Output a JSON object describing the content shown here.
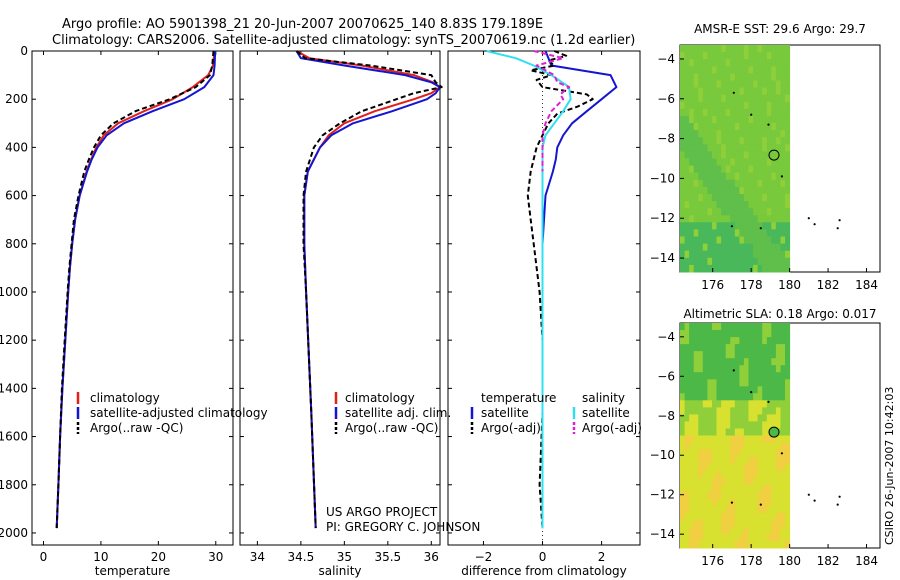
{
  "header": {
    "line1": "Argo profile: AO 5901398_21 20-Jun-2007 20070625_140 8.83S 179.189E",
    "line2": "Climatology: CARS2006. Satellite-adjusted climatology: synTS_20070619.nc (1.2d earlier)"
  },
  "credit": {
    "line1": "US ARGO PROJECT",
    "line2": "PI: GREGORY C. JOHNSON"
  },
  "stamp": "CSIRO 26-Jun-2007 10:42:03",
  "colors": {
    "red": "#e0201b",
    "blue": "#1515d0",
    "black": "#000000",
    "cyan": "#30e0f0",
    "magenta": "#e020d0"
  },
  "chart_data": [
    {
      "type": "line",
      "panel": "temperature",
      "xlabel": "temperature",
      "ylabel": "",
      "xlim": [
        -2,
        33
      ],
      "ylim": [
        2050,
        0
      ],
      "xticks": [
        0,
        10,
        20,
        30
      ],
      "yticks": [
        0,
        200,
        400,
        600,
        800,
        1000,
        1200,
        1400,
        1600,
        1800,
        2000
      ],
      "legend": [
        "climatology",
        "satellite-adjusted climatology",
        "Argo(..raw -QC)"
      ],
      "series": [
        {
          "name": "climatology",
          "color": "red",
          "dash": "",
          "depth": [
            0,
            60,
            100,
            150,
            200,
            250,
            300,
            350,
            400,
            450,
            500,
            600,
            700,
            800,
            900,
            1000,
            1200,
            1400,
            1600,
            1800,
            1980
          ],
          "x": [
            29.8,
            29.5,
            28.7,
            26.0,
            22.5,
            17.5,
            13.0,
            10.5,
            9.2,
            8.3,
            7.5,
            6.3,
            5.5,
            5.0,
            4.6,
            4.3,
            3.8,
            3.3,
            2.9,
            2.6,
            2.3
          ]
        },
        {
          "name": "satellite-adjusted climatology",
          "color": "blue",
          "dash": "",
          "depth": [
            0,
            60,
            100,
            150,
            200,
            250,
            300,
            350,
            400,
            450,
            500,
            600,
            700,
            800,
            900,
            1000,
            1200,
            1400,
            1600,
            1800,
            1980
          ],
          "x": [
            29.9,
            29.8,
            29.6,
            28.0,
            24.5,
            19.0,
            14.0,
            11.0,
            9.4,
            8.4,
            7.6,
            6.3,
            5.5,
            5.0,
            4.6,
            4.3,
            3.8,
            3.3,
            2.9,
            2.6,
            2.3
          ]
        },
        {
          "name": "Argo(..raw -QC)",
          "color": "black",
          "dash": "5,3",
          "depth": [
            0,
            60,
            100,
            150,
            200,
            250,
            300,
            350,
            400,
            450,
            500,
            600,
            700,
            800,
            900,
            1000,
            1200,
            1400,
            1600,
            1800,
            1980
          ],
          "x": [
            29.6,
            29.4,
            29.0,
            26.5,
            22.0,
            16.0,
            12.2,
            10.0,
            8.8,
            7.9,
            7.1,
            6.1,
            5.3,
            4.9,
            4.5,
            4.2,
            3.7,
            3.2,
            2.9,
            2.6,
            2.3
          ]
        }
      ]
    },
    {
      "type": "line",
      "panel": "salinity",
      "xlabel": "salinity",
      "ylabel": "",
      "xlim": [
        33.8,
        36.1
      ],
      "ylim": [
        2050,
        0
      ],
      "xticks": [
        34,
        34.5,
        35,
        35.5,
        36
      ],
      "legend": [
        "climatology",
        "satellite adj. clim.",
        "Argo(..raw -QC)"
      ],
      "series": [
        {
          "name": "climatology",
          "color": "red",
          "dash": "",
          "depth": [
            0,
            30,
            60,
            100,
            130,
            150,
            175,
            200,
            250,
            300,
            350,
            400,
            500,
            600,
            800,
            1000,
            1500,
            1980
          ],
          "x": [
            34.45,
            34.6,
            35.2,
            35.8,
            36.02,
            36.1,
            36.0,
            35.8,
            35.35,
            35.0,
            34.82,
            34.72,
            34.58,
            34.54,
            34.54,
            34.56,
            34.62,
            34.67
          ]
        },
        {
          "name": "satellite adj. clim.",
          "color": "blue",
          "dash": "",
          "depth": [
            0,
            30,
            60,
            100,
            130,
            150,
            175,
            200,
            250,
            300,
            350,
            400,
            500,
            600,
            800,
            1000,
            1500,
            1980
          ],
          "x": [
            34.45,
            34.5,
            35.0,
            35.7,
            36.0,
            36.1,
            36.05,
            35.95,
            35.55,
            35.1,
            34.85,
            34.72,
            34.58,
            34.54,
            34.54,
            34.56,
            34.62,
            34.67
          ]
        },
        {
          "name": "Argo(..raw -QC)",
          "color": "black",
          "dash": "5,3",
          "depth": [
            0,
            30,
            60,
            100,
            130,
            150,
            175,
            200,
            250,
            300,
            350,
            400,
            500,
            600,
            800,
            1000,
            1500,
            1980
          ],
          "x": [
            34.45,
            34.55,
            35.3,
            36.0,
            36.05,
            36.12,
            35.8,
            35.6,
            35.2,
            34.95,
            34.75,
            34.65,
            34.56,
            34.53,
            34.53,
            34.56,
            34.62,
            34.67
          ]
        }
      ]
    },
    {
      "type": "line",
      "panel": "difference",
      "xlabel": "difference from climatology",
      "ylabel": "",
      "xlim": [
        -3.2,
        3.3
      ],
      "ylim": [
        2050,
        0
      ],
      "xticks": [
        -2,
        0,
        2
      ],
      "legend": [
        "temperature",
        "satellite",
        "Argo(-adj)",
        "salinity",
        "satellite",
        "Argo(-adj)"
      ],
      "series": [
        {
          "name": "temperature satellite",
          "color": "blue",
          "dash": "",
          "depth": [
            0,
            60,
            100,
            150,
            200,
            250,
            300,
            350,
            400,
            450,
            500,
            600,
            800,
            1000,
            1500,
            1980
          ],
          "x": [
            0.1,
            0.3,
            2.3,
            2.5,
            2.0,
            1.5,
            1.0,
            0.7,
            0.5,
            0.45,
            0.35,
            0.1,
            0.0,
            0.0,
            0.0,
            0.0
          ]
        },
        {
          "name": "temperature Argo(-adj)",
          "color": "black",
          "dash": "5,3",
          "depth": [
            0,
            20,
            40,
            60,
            80,
            100,
            120,
            150,
            180,
            200,
            230,
            260,
            300,
            350,
            400,
            500,
            600,
            700,
            800,
            1000,
            1200,
            1500,
            1800,
            1980
          ],
          "x": [
            0.4,
            0.8,
            0.2,
            0.4,
            -0.4,
            0.3,
            -0.2,
            0.0,
            1.5,
            1.7,
            1.2,
            0.5,
            0.2,
            0.0,
            -0.2,
            -0.4,
            -0.5,
            -0.4,
            -0.3,
            -0.1,
            0.0,
            0.0,
            -0.1,
            0.0
          ]
        },
        {
          "name": "salinity satellite",
          "color": "cyan",
          "dash": "",
          "depth": [
            0,
            30,
            60,
            100,
            150,
            200,
            250,
            300,
            350,
            400,
            500,
            600,
            800,
            1000,
            1500,
            1980
          ],
          "x": [
            -1.9,
            -0.9,
            -0.3,
            0.3,
            0.9,
            0.95,
            0.7,
            0.4,
            0.1,
            0.0,
            0.0,
            0.0,
            0.0,
            0.0,
            0.0,
            0.0
          ]
        },
        {
          "name": "salinity Argo(-adj)",
          "color": "magenta",
          "dash": "5,3",
          "depth": [
            0,
            30,
            60,
            100,
            130,
            150,
            180,
            200,
            250,
            300,
            350,
            400,
            500
          ],
          "x": [
            -0.3,
            0.7,
            -0.2,
            0.4,
            0.5,
            0.9,
            0.6,
            0.7,
            0.3,
            0.1,
            0.0,
            0.0,
            0.0
          ]
        }
      ]
    }
  ],
  "maps": [
    {
      "title": "AMSR-E SST: 29.6 Argo: 29.7",
      "xticks": [
        176,
        178,
        180,
        182,
        184
      ],
      "yticks": [
        -4,
        -6,
        -8,
        -10,
        -12,
        -14
      ],
      "xlim": [
        174.3,
        184.7
      ],
      "ylim": [
        -3.3,
        -14.7
      ],
      "data_lon_max": 180,
      "float_lon": 179.19,
      "float_lat": -8.83,
      "palette": [
        "#8fcf3a",
        "#78c93c",
        "#5fbf4a",
        "#48b85a"
      ]
    },
    {
      "title": "Altimetric SLA: 0.18 Argo: 0.017",
      "xticks": [
        176,
        178,
        180,
        182,
        184
      ],
      "yticks": [
        -4,
        -6,
        -8,
        -10,
        -12,
        -14
      ],
      "xlim": [
        174.3,
        184.7
      ],
      "ylim": [
        -3.3,
        -14.7
      ],
      "data_lon_max": 180,
      "float_lon": 179.19,
      "float_lat": -8.83,
      "palette": [
        "#4cb848",
        "#8fcf3a",
        "#d8e030",
        "#f0cf40"
      ]
    }
  ]
}
